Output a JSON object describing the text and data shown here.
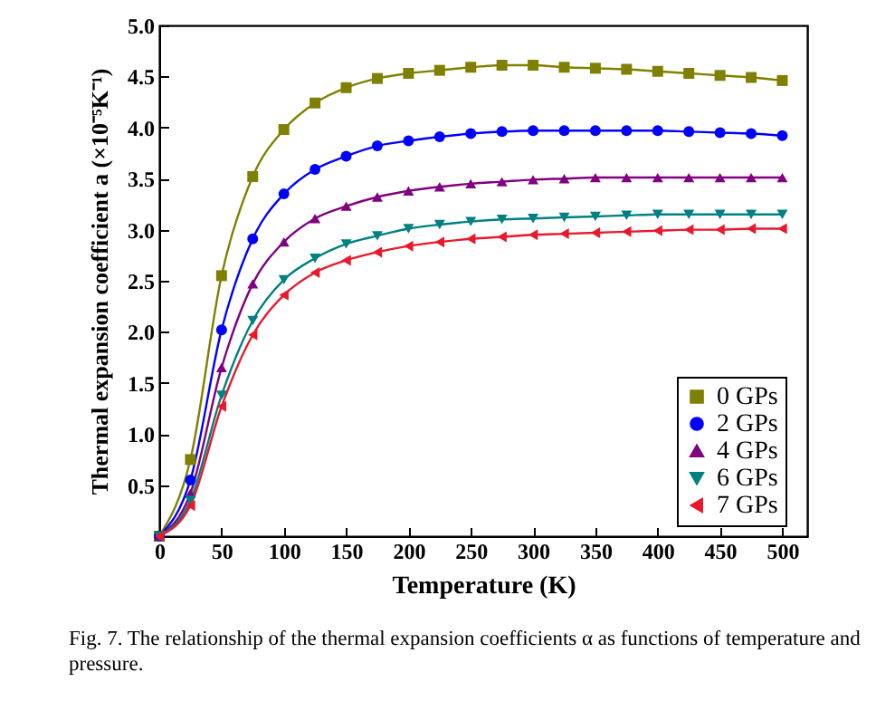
{
  "chart_data": {
    "type": "line",
    "xlabel": "Temperature (K)",
    "ylabel": "Thermal expansion coefficient a (×10⁻⁵K⁻¹)",
    "x": [
      0,
      25,
      50,
      75,
      100,
      125,
      150,
      175,
      200,
      225,
      250,
      275,
      300,
      325,
      350,
      375,
      400,
      425,
      450,
      475,
      500
    ],
    "series": [
      {
        "name": "0 GPs",
        "color": "#808000",
        "marker": "square",
        "values": [
          0,
          0.75,
          2.55,
          3.52,
          3.98,
          4.24,
          4.39,
          4.48,
          4.53,
          4.56,
          4.59,
          4.61,
          4.61,
          4.59,
          4.58,
          4.57,
          4.55,
          4.53,
          4.51,
          4.49,
          4.46
        ]
      },
      {
        "name": "2 GPs",
        "color": "#0000ff",
        "marker": "circle",
        "values": [
          0,
          0.55,
          2.02,
          2.91,
          3.35,
          3.59,
          3.72,
          3.82,
          3.87,
          3.91,
          3.94,
          3.96,
          3.97,
          3.97,
          3.97,
          3.97,
          3.97,
          3.96,
          3.95,
          3.94,
          3.92
        ]
      },
      {
        "name": "4 GPs",
        "color": "#800080",
        "marker": "triangle",
        "values": [
          0,
          0.42,
          1.65,
          2.47,
          2.88,
          3.11,
          3.23,
          3.32,
          3.38,
          3.42,
          3.45,
          3.47,
          3.49,
          3.5,
          3.51,
          3.51,
          3.51,
          3.51,
          3.51,
          3.51,
          3.51
        ]
      },
      {
        "name": "6 GPs",
        "color": "#008080",
        "marker": "triangle-down",
        "values": [
          0,
          0.35,
          1.38,
          2.11,
          2.51,
          2.72,
          2.86,
          2.94,
          3.01,
          3.05,
          3.08,
          3.1,
          3.11,
          3.12,
          3.13,
          3.14,
          3.15,
          3.15,
          3.15,
          3.15,
          3.15
        ]
      },
      {
        "name": "7 GPs",
        "color": "#e8192c",
        "marker": "triangle-left",
        "values": [
          0,
          0.3,
          1.27,
          1.97,
          2.36,
          2.58,
          2.7,
          2.78,
          2.84,
          2.88,
          2.91,
          2.93,
          2.95,
          2.96,
          2.97,
          2.98,
          2.99,
          3.0,
          3.0,
          3.01,
          3.01
        ]
      }
    ],
    "xlim": [
      0,
      520
    ],
    "xticks": [
      0,
      50,
      100,
      150,
      200,
      250,
      300,
      350,
      400,
      450,
      500
    ],
    "ylim": [
      0,
      5
    ],
    "yticks": [
      {
        "value": 0,
        "label": null
      },
      0.5,
      {
        "value": 1,
        "label": "1.0"
      },
      1.5,
      {
        "value": 2,
        "label": "2.0"
      },
      2.5,
      {
        "value": 3,
        "label": "3.0"
      },
      3.5,
      {
        "value": 4,
        "label": "4.0"
      },
      4.5,
      {
        "value": 5,
        "label": "5.0"
      }
    ],
    "legend": "bottom right",
    "grid": false,
    "annotations": [
      "Fig. 7. The relationship of the thermal expansion coefficients α as functions of temperature and pressure."
    ]
  }
}
